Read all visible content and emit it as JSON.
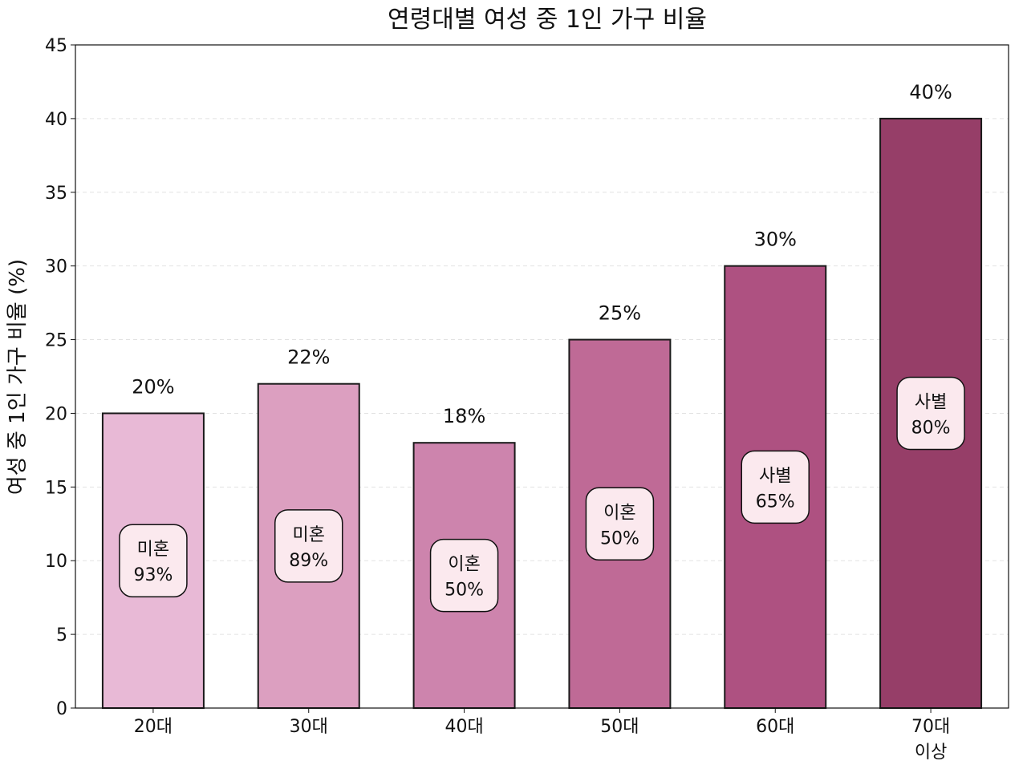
{
  "chart_data": {
    "type": "bar",
    "title": "연령대별 여성 중 1인 가구 비율",
    "xlabel": "",
    "ylabel": "여성 중 1인 가구 비율 (%)",
    "ylim": [
      0,
      45
    ],
    "yticks": [
      0,
      5,
      10,
      15,
      20,
      25,
      30,
      35,
      40,
      45
    ],
    "grid": "y-dashed",
    "categories": [
      [
        "20대"
      ],
      [
        "30대"
      ],
      [
        "40대"
      ],
      [
        "50대"
      ],
      [
        "60대"
      ],
      [
        "70대",
        "이상"
      ]
    ],
    "values": [
      20,
      22,
      18,
      25,
      30,
      40
    ],
    "value_labels": [
      "20%",
      "22%",
      "18%",
      "25%",
      "30%",
      "40%"
    ],
    "annotations": [
      {
        "reason": "미혼",
        "pct": "93%"
      },
      {
        "reason": "미혼",
        "pct": "89%"
      },
      {
        "reason": "이혼",
        "pct": "50%"
      },
      {
        "reason": "이혼",
        "pct": "50%"
      },
      {
        "reason": "사별",
        "pct": "65%"
      },
      {
        "reason": "사별",
        "pct": "80%"
      }
    ],
    "colors": [
      "#e8b9d6",
      "#dc9fc0",
      "#cd84ad",
      "#bf6a96",
      "#ae5181",
      "#963e68"
    ],
    "annotation_box_color": "#fbe9ee",
    "edge_color": "#1a1a1a"
  }
}
